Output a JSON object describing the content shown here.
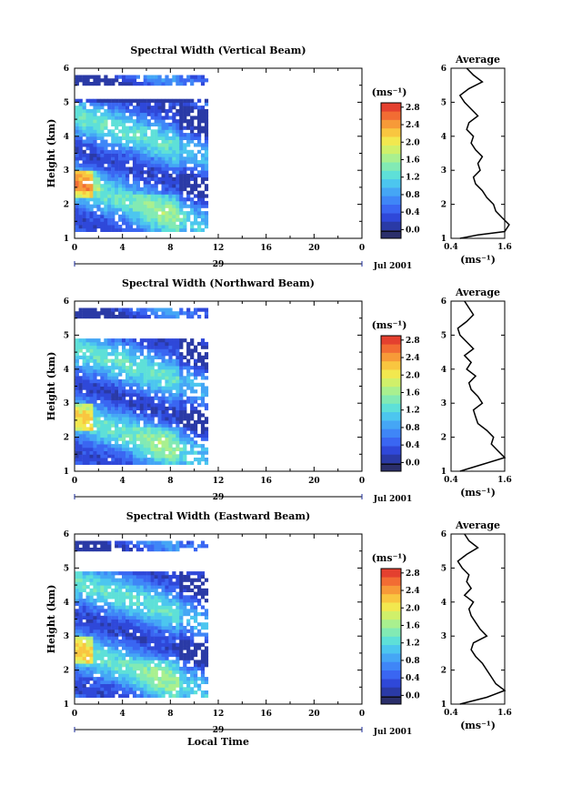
{
  "chart_data": [
    {
      "type": "heatmap",
      "title": "Spectral Width (Vertical Beam)",
      "ylabel": "Height (km)",
      "xlabel": "",
      "xlim": [
        0,
        24
      ],
      "ylim": [
        1,
        6
      ],
      "xticks": [
        "0",
        "4",
        "8",
        "12",
        "16",
        "20",
        "0"
      ],
      "yticks": [
        "1",
        "2",
        "3",
        "4",
        "5",
        "6"
      ],
      "date_day": "29",
      "date_label": "Jul 2001",
      "data_extent_hours": [
        0,
        11
      ],
      "colorbar": {
        "unit": "(ms⁻¹)",
        "range": [
          -0.1,
          3.0
        ],
        "ticks": [
          "0.0",
          "0.4",
          "0.8",
          "1.2",
          "1.6",
          "2.0",
          "2.4",
          "2.8"
        ]
      },
      "average_profile": {
        "title": "Average",
        "xlabel": "(ms⁻¹)",
        "xticks": [
          "0.4",
          "1.6"
        ],
        "xlim": [
          0.4,
          1.6
        ],
        "height": [
          1.0,
          1.1,
          1.2,
          1.4,
          1.6,
          1.8,
          2.0,
          2.2,
          2.4,
          2.6,
          2.8,
          3.0,
          3.2,
          3.4,
          3.6,
          3.8,
          4.0,
          4.2,
          4.4,
          4.6,
          4.8,
          5.0,
          5.2,
          5.4,
          5.6,
          5.8,
          6.0
        ],
        "value": [
          0.6,
          1.0,
          1.6,
          1.7,
          1.55,
          1.4,
          1.35,
          1.2,
          1.1,
          0.95,
          0.9,
          1.05,
          1.0,
          1.1,
          0.95,
          0.85,
          0.9,
          0.75,
          0.8,
          1.0,
          0.85,
          0.7,
          0.6,
          0.8,
          1.1,
          0.9,
          0.75
        ]
      }
    },
    {
      "type": "heatmap",
      "title": "Spectral Width (Northward Beam)",
      "ylabel": "Height (km)",
      "xlabel": "",
      "xlim": [
        0,
        24
      ],
      "ylim": [
        1,
        6
      ],
      "xticks": [
        "0",
        "4",
        "8",
        "12",
        "16",
        "20",
        "0"
      ],
      "yticks": [
        "1",
        "2",
        "3",
        "4",
        "5",
        "6"
      ],
      "date_day": "29",
      "date_label": "Jul 2001",
      "data_extent_hours": [
        0,
        11
      ],
      "colorbar": {
        "unit": "(ms⁻¹)",
        "range": [
          -0.1,
          3.0
        ],
        "ticks": [
          "0.0",
          "0.4",
          "0.8",
          "1.2",
          "1.6",
          "2.0",
          "2.4",
          "2.8"
        ]
      },
      "average_profile": {
        "title": "Average",
        "xlabel": "(ms⁻¹)",
        "xticks": [
          "0.4",
          "1.6"
        ],
        "xlim": [
          0.4,
          1.6
        ],
        "height": [
          1.0,
          1.2,
          1.4,
          1.6,
          1.8,
          2.0,
          2.2,
          2.4,
          2.6,
          2.8,
          3.0,
          3.2,
          3.4,
          3.6,
          3.8,
          4.0,
          4.2,
          4.4,
          4.6,
          4.8,
          5.0,
          5.2,
          5.4,
          5.6,
          5.8,
          6.0
        ],
        "value": [
          0.6,
          1.1,
          1.6,
          1.45,
          1.3,
          1.35,
          1.2,
          1.0,
          0.95,
          0.9,
          1.1,
          1.0,
          0.85,
          0.8,
          0.95,
          0.75,
          0.85,
          0.7,
          0.9,
          0.75,
          0.6,
          0.55,
          0.75,
          0.9,
          0.8,
          0.7
        ]
      }
    },
    {
      "type": "heatmap",
      "title": "Spectral Width (Eastward Beam)",
      "ylabel": "Height (km)",
      "xlabel": "Local Time",
      "xlim": [
        0,
        24
      ],
      "ylim": [
        1,
        6
      ],
      "xticks": [
        "0",
        "4",
        "8",
        "12",
        "16",
        "20",
        "0"
      ],
      "yticks": [
        "1",
        "2",
        "3",
        "4",
        "5",
        "6"
      ],
      "date_day": "29",
      "date_label": "Jul 2001",
      "data_extent_hours": [
        0,
        11
      ],
      "colorbar": {
        "unit": "(ms⁻¹)",
        "range": [
          -0.1,
          3.0
        ],
        "ticks": [
          "0.0",
          "0.4",
          "0.8",
          "1.2",
          "1.6",
          "2.0",
          "2.4",
          "2.8"
        ]
      },
      "average_profile": {
        "title": "Average",
        "xlabel": "(ms⁻¹)",
        "xticks": [
          "0.4",
          "1.6"
        ],
        "xlim": [
          0.4,
          1.6
        ],
        "height": [
          1.0,
          1.2,
          1.4,
          1.6,
          1.8,
          2.0,
          2.2,
          2.4,
          2.6,
          2.8,
          3.0,
          3.2,
          3.4,
          3.6,
          3.8,
          4.0,
          4.2,
          4.4,
          4.6,
          4.8,
          5.0,
          5.2,
          5.4,
          5.6,
          5.8,
          6.0
        ],
        "value": [
          0.6,
          1.2,
          1.6,
          1.4,
          1.3,
          1.2,
          1.1,
          0.95,
          0.85,
          0.9,
          1.2,
          1.05,
          0.95,
          0.85,
          0.8,
          0.9,
          0.7,
          0.85,
          0.75,
          0.8,
          0.65,
          0.55,
          0.75,
          1.0,
          0.8,
          0.7
        ]
      }
    }
  ]
}
